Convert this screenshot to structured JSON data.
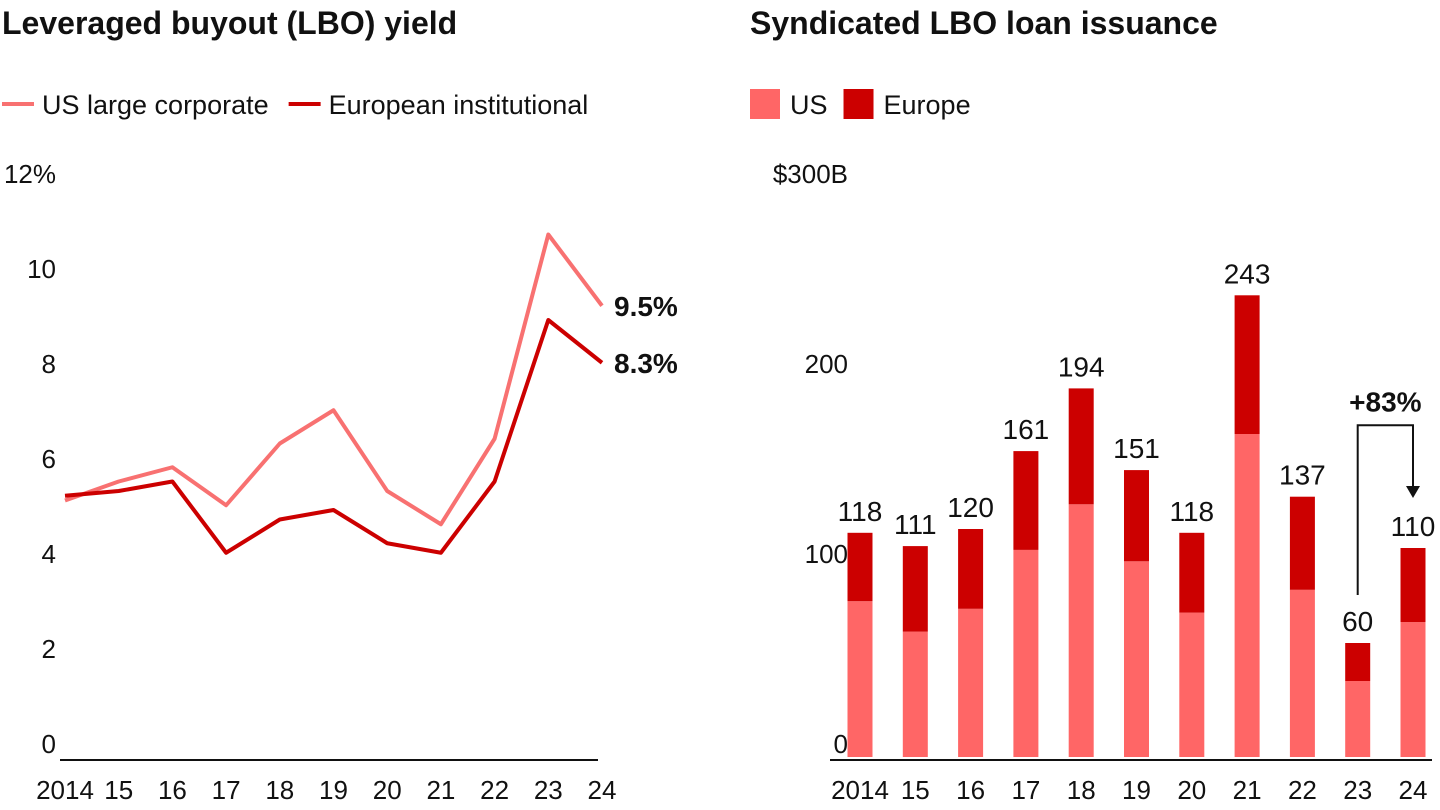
{
  "chart_data": [
    {
      "type": "line",
      "title": "Leveraged buyout (LBO) yield",
      "categories": [
        "2014",
        "15",
        "16",
        "17",
        "18",
        "19",
        "20",
        "21",
        "22",
        "23",
        "24"
      ],
      "series": [
        {
          "name": "US large corporate",
          "color": "#f87171",
          "values": [
            5.4,
            5.8,
            6.1,
            5.3,
            6.6,
            7.3,
            5.6,
            4.9,
            6.7,
            11.0,
            9.5
          ],
          "end_label": "9.5%"
        },
        {
          "name": "European institutional",
          "color": "#cc0000",
          "values": [
            5.5,
            5.6,
            5.8,
            4.3,
            5.0,
            5.2,
            4.5,
            4.3,
            5.8,
            9.2,
            8.3
          ],
          "end_label": "8.3%"
        }
      ],
      "ylim": [
        0,
        12
      ],
      "yticks": [
        0,
        2,
        4,
        6,
        8,
        10,
        {
          "value": 12,
          "label": "12%"
        }
      ]
    },
    {
      "type": "stacked_bar",
      "title": "Syndicated LBO loan issuance",
      "categories": [
        "2014",
        "15",
        "16",
        "17",
        "18",
        "19",
        "20",
        "21",
        "22",
        "23",
        "24"
      ],
      "series": [
        {
          "name": "US",
          "color": "#ff6666",
          "values": [
            82,
            66,
            78,
            109,
            133,
            103,
            76,
            170,
            88,
            40,
            71
          ]
        },
        {
          "name": "Europe",
          "color": "#cc0000",
          "values": [
            36,
            45,
            42,
            52,
            61,
            48,
            42,
            73,
            49,
            20,
            39
          ]
        }
      ],
      "totals": [
        118,
        111,
        120,
        161,
        194,
        151,
        118,
        243,
        137,
        60,
        110
      ],
      "annotation": "+83%",
      "ylim": [
        0,
        300
      ],
      "yticks": [
        0,
        100,
        200,
        {
          "value": 300,
          "label": "$300B"
        }
      ]
    }
  ]
}
